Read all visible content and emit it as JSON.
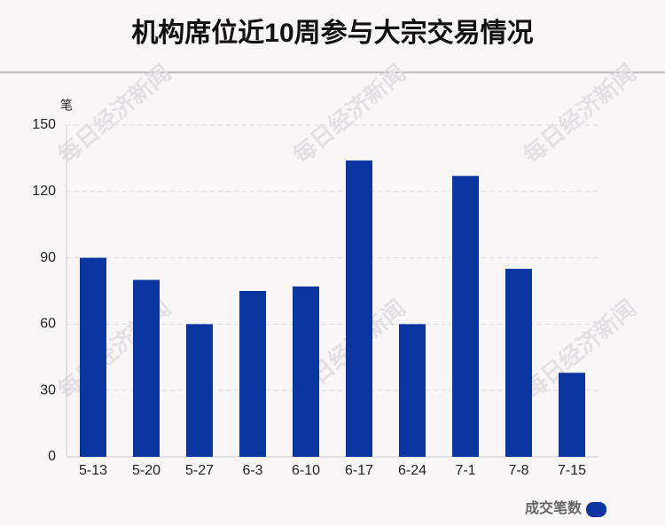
{
  "chart_data": {
    "type": "bar",
    "title": "机构席位近10周参与大宗交易情况",
    "y_label": "笔",
    "categories": [
      "5-13",
      "5-20",
      "5-27",
      "6-3",
      "6-10",
      "6-17",
      "6-24",
      "7-1",
      "7-8",
      "7-15"
    ],
    "series": [
      {
        "name": "成交笔数",
        "color": "#0b35a0",
        "values": [
          90,
          80,
          60,
          75,
          77,
          134,
          60,
          127,
          85,
          38
        ]
      }
    ],
    "ylim": [
      0,
      150
    ],
    "yticks": [
      0,
      30,
      60,
      90,
      120,
      150
    ],
    "grid": true,
    "legend": "bottom-right",
    "watermark": "每日经济新闻"
  }
}
